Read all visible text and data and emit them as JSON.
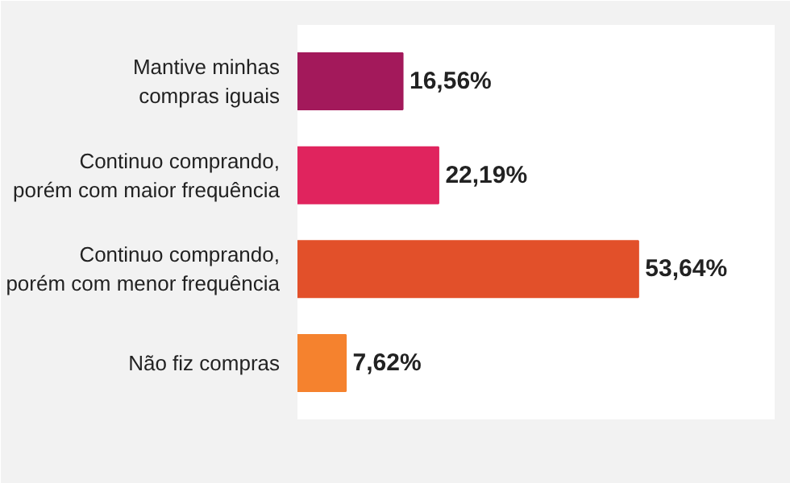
{
  "chart_data": {
    "type": "bar",
    "orientation": "horizontal",
    "categories": [
      "Mantive minhas\ncompras iguais",
      "Continuo comprando,\nporém com maior frequência",
      "Continuo comprando,\nporém com menor frequência",
      "Não fiz compras"
    ],
    "values": [
      16.56,
      22.19,
      53.64,
      7.62
    ],
    "value_labels": [
      "16,56%",
      "22,19%",
      "53,64%",
      "7,62%"
    ],
    "colors": [
      "#a3195b",
      "#e0245e",
      "#e2502a",
      "#f5822e"
    ],
    "grid": false
  }
}
